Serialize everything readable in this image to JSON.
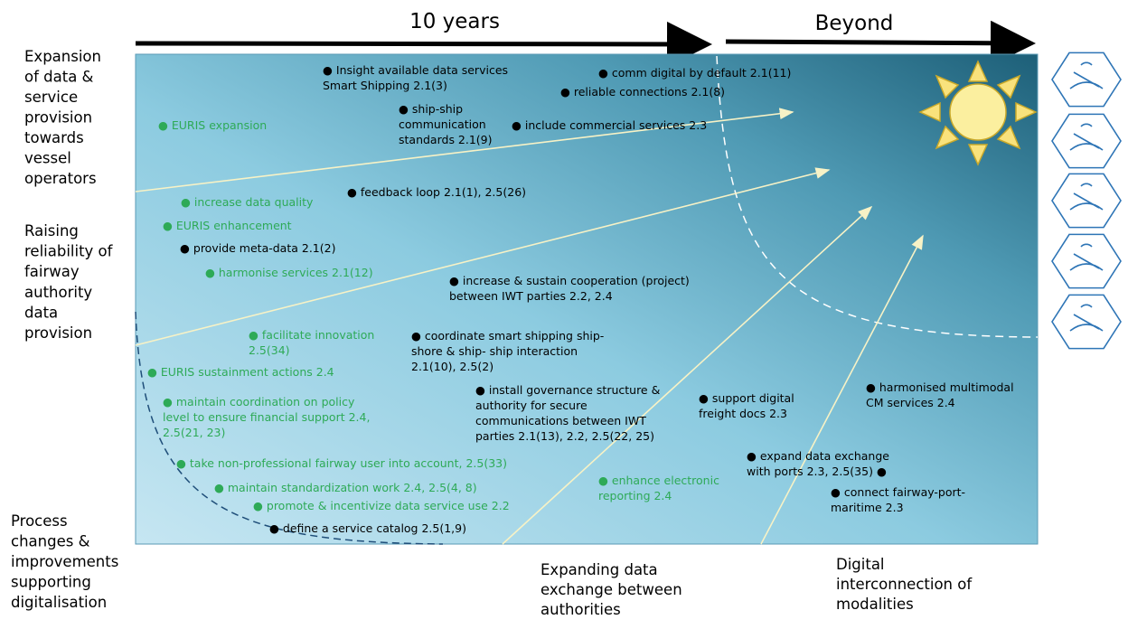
{
  "header": {
    "left": "10 years",
    "right": "Beyond"
  },
  "side_labels": [
    {
      "lines": [
        "Expansion",
        "of data &",
        "service",
        "provision",
        "towards",
        "vessel",
        "operators"
      ]
    },
    {
      "lines": [
        "Raising",
        "reliability of",
        "fairway",
        "authority",
        "data",
        "provision"
      ]
    },
    {
      "lines": [
        "Process",
        "changes &",
        "improvements",
        "supporting",
        "digitalisation"
      ]
    }
  ],
  "bottom_labels": [
    {
      "lines": [
        "Expanding data",
        "exchange between",
        "authorities"
      ]
    },
    {
      "lines": [
        "Digital",
        "interconnection of",
        "modalities"
      ]
    }
  ],
  "items": [
    {
      "lines": [
        "● EURIS expansion"
      ],
      "color": "#2eaa57"
    },
    {
      "lines": [
        "● Insight available data services",
        "Smart Shipping 2.1(3)"
      ],
      "color": "#000000"
    },
    {
      "lines": [
        "● comm digital by default 2.1(11)"
      ],
      "color": "#000000"
    },
    {
      "lines": [
        "● reliable connections 2.1(8)"
      ],
      "color": "#000000"
    },
    {
      "lines": [
        "● ship-ship",
        "communication",
        "standards 2.1(9)"
      ],
      "color": "#000000"
    },
    {
      "lines": [
        "● include commercial services 2.3"
      ],
      "color": "#000000"
    },
    {
      "lines": [
        "● feedback loop 2.1(1), 2.5(26)"
      ],
      "color": "#000000"
    },
    {
      "lines": [
        "● increase data quality"
      ],
      "color": "#2eaa57"
    },
    {
      "lines": [
        "● EURIS enhancement"
      ],
      "color": "#2eaa57"
    },
    {
      "lines": [
        "● provide meta-data 2.1(2)"
      ],
      "color": "#000000"
    },
    {
      "lines": [
        "●  harmonise services 2.1(12)"
      ],
      "color": "#2eaa57"
    },
    {
      "lines": [
        "● increase & sustain cooperation (project)",
        "between IWT parties 2.2, 2.4"
      ],
      "color": "#000000"
    },
    {
      "lines": [
        "● facilitate innovation",
        "2.5(34)"
      ],
      "color": "#2eaa57"
    },
    {
      "lines": [
        "● coordinate smart shipping ship-",
        "shore & ship- ship interaction",
        "2.1(10), 2.5(2)"
      ],
      "color": "#000000"
    },
    {
      "lines": [
        "● EURIS sustainment actions 2.4"
      ],
      "color": "#2eaa57"
    },
    {
      "lines": [
        "● maintain coordination on policy",
        "level to ensure financial support 2.4,",
        "2.5(21, 23)"
      ],
      "color": "#2eaa57"
    },
    {
      "lines": [
        "● install governance structure &",
        "authority for secure",
        "communications between IWT",
        "parties 2.1(13), 2.2, 2.5(22, 25)"
      ],
      "color": "#000000"
    },
    {
      "lines": [
        "● support digital",
        "freight docs 2.3"
      ],
      "color": "#000000"
    },
    {
      "lines": [
        "● harmonised multimodal",
        "CM services 2.4"
      ],
      "color": "#000000"
    },
    {
      "lines": [
        "● take non-professional fairway user into account, 2.5(33)"
      ],
      "color": "#2eaa57"
    },
    {
      "lines": [
        "● expand data exchange",
        "with ports 2.3, 2.5(35) ●"
      ],
      "color": "#000000"
    },
    {
      "lines": [
        "● enhance electronic",
        "reporting 2.4"
      ],
      "color": "#2eaa57"
    },
    {
      "lines": [
        "● connect fairway-port-",
        "maritime 2.3"
      ],
      "color": "#000000"
    },
    {
      "lines": [
        "● maintain standardization work 2.4, 2.5(4, 8)"
      ],
      "color": "#2eaa57"
    },
    {
      "lines": [
        "● promote & incentivize data service use 2.2"
      ],
      "color": "#2eaa57"
    },
    {
      "lines": [
        "● define a service catalog 2.5(1,9)"
      ],
      "color": "#000000"
    }
  ]
}
